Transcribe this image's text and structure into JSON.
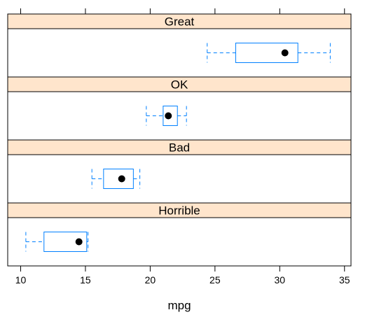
{
  "chart_data": {
    "type": "box",
    "xlabel": "mpg",
    "xlim": [
      9,
      35.5
    ],
    "xticks": [
      10,
      15,
      20,
      25,
      30,
      35
    ],
    "grid": false,
    "panels": [
      {
        "label": "Great",
        "whisker_low": 24.4,
        "q1": 26.6,
        "median": 30.4,
        "q3": 31.4,
        "whisker_high": 33.9
      },
      {
        "label": "OK",
        "whisker_low": 19.7,
        "q1": 21.0,
        "median": 21.4,
        "q3": 22.1,
        "whisker_high": 22.8
      },
      {
        "label": "Bad",
        "whisker_low": 15.5,
        "q1": 16.4,
        "median": 17.8,
        "q3": 18.7,
        "whisker_high": 19.2
      },
      {
        "label": "Horrible",
        "whisker_low": 10.4,
        "q1": 11.8,
        "median": 14.5,
        "q3": 15.1,
        "whisker_high": 15.2
      }
    ],
    "colors": {
      "strip_fill": "#ffe5cc",
      "box": "#0080ff",
      "whisker": "#0080ff",
      "median_dot": "#000000",
      "frame": "#000000"
    }
  }
}
